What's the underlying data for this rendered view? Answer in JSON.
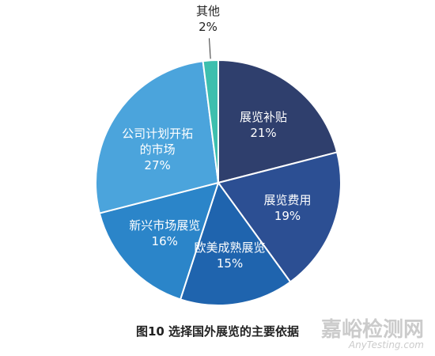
{
  "chart_data": {
    "type": "pie",
    "title": "图10  选择国外展览的主要依据",
    "categories": [
      "展览补贴",
      "展览费用",
      "欧美成熟展览",
      "新兴市场展览",
      "公司计划开拓的市场",
      "其他"
    ],
    "values": [
      21,
      19,
      15,
      16,
      27,
      2
    ],
    "value_labels": [
      "21%",
      "19%",
      "15%",
      "16%",
      "27%",
      "2%"
    ],
    "colors": [
      "#2f3f6d",
      "#2c4f93",
      "#1f64ae",
      "#2b85c9",
      "#4ba4dc",
      "#3dbfae"
    ]
  },
  "watermark": {
    "text": "嘉峪检测网",
    "url": "AnyTesting.com"
  }
}
